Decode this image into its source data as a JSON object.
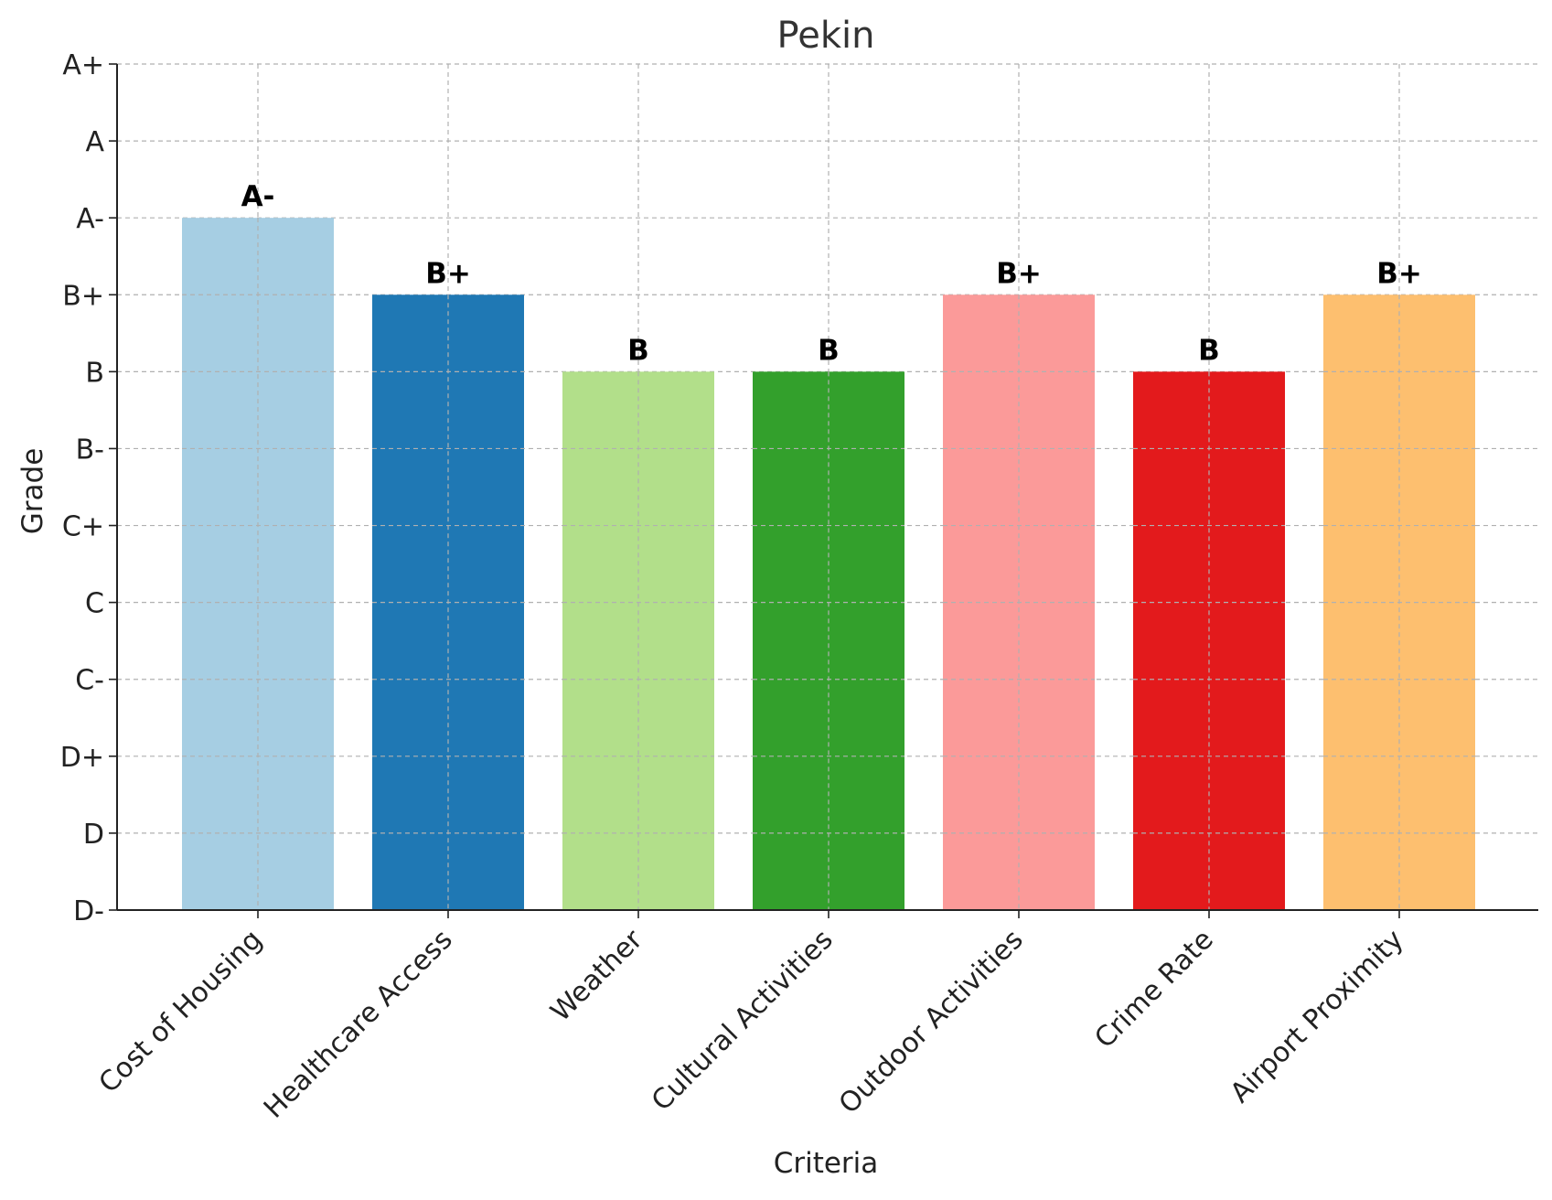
{
  "chart_data": {
    "type": "bar",
    "title": "Pekin",
    "xlabel": "Criteria",
    "ylabel": "Grade",
    "grade_scale": [
      "D-",
      "D",
      "D+",
      "C-",
      "C",
      "C+",
      "B-",
      "B",
      "B+",
      "A-",
      "A",
      "A+"
    ],
    "categories": [
      "Cost of Housing",
      "Healthcare Access",
      "Weather",
      "Cultural Activities",
      "Outdoor Activities",
      "Crime Rate",
      "Airport Proximity"
    ],
    "values": [
      "A-",
      "B+",
      "B",
      "B",
      "B+",
      "B",
      "B+"
    ],
    "data_labels": [
      "A-",
      "B+",
      "B",
      "B",
      "B+",
      "B",
      "B+"
    ],
    "colors": [
      "#a6cee3",
      "#1f78b4",
      "#b2df8a",
      "#33a02c",
      "#fb9a99",
      "#e31a1c",
      "#fdbf6f"
    ],
    "ylim": [
      "D-",
      "A+"
    ],
    "grid": true,
    "legend": false
  }
}
